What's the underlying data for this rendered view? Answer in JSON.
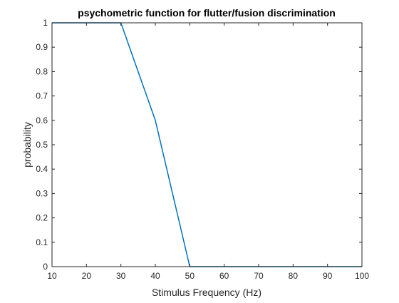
{
  "chart_data": {
    "type": "line",
    "title": "psychometric function for flutter/fusion discrimination",
    "xlabel": "Stimulus Frequency (Hz)",
    "ylabel": "probability",
    "xlim": [
      10,
      100
    ],
    "ylim": [
      0,
      1
    ],
    "xticks": [
      10,
      20,
      30,
      40,
      50,
      60,
      70,
      80,
      90,
      100
    ],
    "yticks": [
      0,
      0.1,
      0.2,
      0.3,
      0.4,
      0.5,
      0.6,
      0.7,
      0.8,
      0.9,
      1
    ],
    "grid": false,
    "series": [
      {
        "color": "#0072BD",
        "x": [
          10,
          20,
          30,
          40,
          50,
          60,
          70,
          80,
          90,
          100
        ],
        "y": [
          1,
          1,
          1,
          0.6,
          0,
          0,
          0,
          0,
          0,
          0
        ]
      }
    ]
  }
}
